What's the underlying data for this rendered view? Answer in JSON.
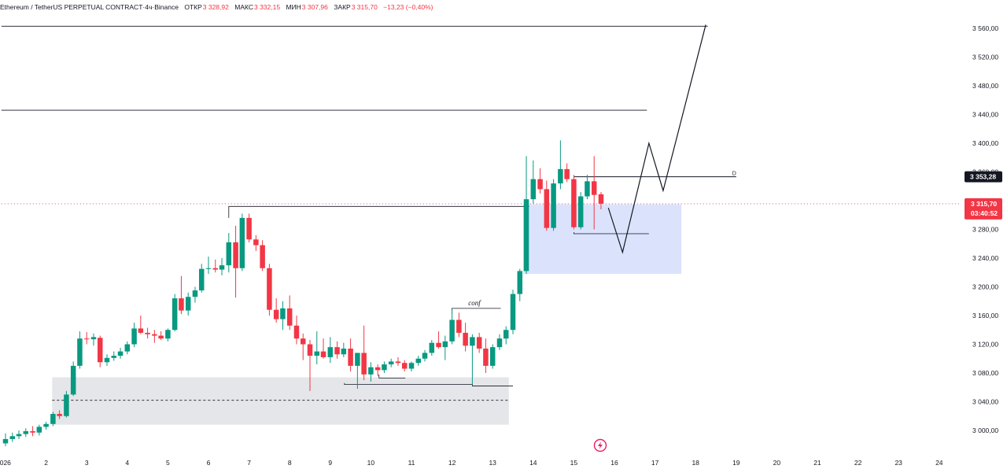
{
  "header": {
    "symbol": "Ethereum / TetherUS PERPETUAL CONTRACT",
    "interval": "4ч",
    "exchange": "Binance",
    "open_label": "ОТКР",
    "open_value": "3 328,92",
    "high_label": "МАКС",
    "high_value": "3 332,15",
    "low_label": "МИН",
    "low_value": "3 307,96",
    "close_label": "ЗАКР",
    "close_value": "3 315,70",
    "change": "−13,23 (−0,40%)"
  },
  "colors": {
    "up": "#089981",
    "down": "#f23645",
    "grey_zone": "#e5e6e9",
    "blue_zone": "#dbe3fc",
    "text": "#131722"
  },
  "price_axis": {
    "ticks": [
      "3 560,00",
      "3 520,00",
      "3 480,00",
      "3 440,00",
      "3 400,00",
      "3 360,00",
      "3 320,00",
      "3 280,00",
      "3 240,00",
      "3 200,00",
      "3 160,00",
      "3 120,00",
      "3 080,00",
      "3 040,00",
      "3 000,00"
    ],
    "current_price_label": "3 315,70",
    "countdown_label": "03:40:52",
    "level_label": "3 353,28"
  },
  "time_axis": {
    "ticks": [
      "2026",
      "2",
      "3",
      "4",
      "5",
      "6",
      "7",
      "8",
      "9",
      "10",
      "11",
      "12",
      "13",
      "14",
      "15",
      "16",
      "17",
      "18",
      "19",
      "20",
      "21",
      "22",
      "23",
      "24"
    ]
  },
  "annotations": {
    "conf": "conf",
    "d_marker": "D",
    "flash_icon": "lightning-icon"
  },
  "chart_data": {
    "type": "candlestick",
    "timeframe": "4ч",
    "x_unit": "day of month (4h candles)",
    "ylim": [
      2980,
      3570
    ],
    "xlim": [
      0.9,
      25.1
    ],
    "candles": [
      {
        "t": 1.0,
        "o": 2982,
        "h": 2996,
        "l": 2978,
        "c": 2988
      },
      {
        "t": 1.17,
        "o": 2988,
        "h": 2997,
        "l": 2984,
        "c": 2992
      },
      {
        "t": 1.33,
        "o": 2992,
        "h": 3000,
        "l": 2988,
        "c": 2995
      },
      {
        "t": 1.5,
        "o": 2995,
        "h": 3003,
        "l": 2991,
        "c": 2999
      },
      {
        "t": 1.67,
        "o": 2999,
        "h": 3006,
        "l": 2992,
        "c": 2997
      },
      {
        "t": 1.83,
        "o": 2997,
        "h": 3008,
        "l": 2993,
        "c": 3005
      },
      {
        "t": 2.0,
        "o": 3005,
        "h": 3012,
        "l": 3001,
        "c": 3009
      },
      {
        "t": 2.17,
        "o": 3009,
        "h": 3026,
        "l": 3006,
        "c": 3023
      },
      {
        "t": 2.33,
        "o": 3023,
        "h": 3028,
        "l": 3016,
        "c": 3020
      },
      {
        "t": 2.5,
        "o": 3020,
        "h": 3055,
        "l": 3018,
        "c": 3050
      },
      {
        "t": 2.67,
        "o": 3050,
        "h": 3096,
        "l": 3048,
        "c": 3090
      },
      {
        "t": 2.83,
        "o": 3090,
        "h": 3138,
        "l": 3086,
        "c": 3128
      },
      {
        "t": 3.0,
        "o": 3128,
        "h": 3137,
        "l": 3120,
        "c": 3127
      },
      {
        "t": 3.17,
        "o": 3127,
        "h": 3135,
        "l": 3118,
        "c": 3130
      },
      {
        "t": 3.33,
        "o": 3129,
        "h": 3132,
        "l": 3088,
        "c": 3095
      },
      {
        "t": 3.5,
        "o": 3095,
        "h": 3106,
        "l": 3090,
        "c": 3101
      },
      {
        "t": 3.67,
        "o": 3101,
        "h": 3110,
        "l": 3097,
        "c": 3104
      },
      {
        "t": 3.83,
        "o": 3104,
        "h": 3115,
        "l": 3100,
        "c": 3110
      },
      {
        "t": 4.0,
        "o": 3110,
        "h": 3124,
        "l": 3106,
        "c": 3120
      },
      {
        "t": 4.17,
        "o": 3120,
        "h": 3150,
        "l": 3116,
        "c": 3142
      },
      {
        "t": 4.33,
        "o": 3142,
        "h": 3160,
        "l": 3134,
        "c": 3136
      },
      {
        "t": 4.5,
        "o": 3136,
        "h": 3143,
        "l": 3128,
        "c": 3134
      },
      {
        "t": 4.67,
        "o": 3134,
        "h": 3140,
        "l": 3122,
        "c": 3132
      },
      {
        "t": 4.83,
        "o": 3132,
        "h": 3138,
        "l": 3126,
        "c": 3128
      },
      {
        "t": 5.0,
        "o": 3128,
        "h": 3142,
        "l": 3124,
        "c": 3140
      },
      {
        "t": 5.17,
        "o": 3140,
        "h": 3190,
        "l": 3138,
        "c": 3184
      },
      {
        "t": 5.33,
        "o": 3184,
        "h": 3215,
        "l": 3162,
        "c": 3167
      },
      {
        "t": 5.5,
        "o": 3167,
        "h": 3192,
        "l": 3160,
        "c": 3186
      },
      {
        "t": 5.67,
        "o": 3186,
        "h": 3200,
        "l": 3178,
        "c": 3195
      },
      {
        "t": 5.83,
        "o": 3195,
        "h": 3232,
        "l": 3192,
        "c": 3225
      },
      {
        "t": 6.0,
        "o": 3225,
        "h": 3242,
        "l": 3218,
        "c": 3226
      },
      {
        "t": 6.17,
        "o": 3226,
        "h": 3238,
        "l": 3220,
        "c": 3224
      },
      {
        "t": 6.33,
        "o": 3224,
        "h": 3240,
        "l": 3216,
        "c": 3230
      },
      {
        "t": 6.5,
        "o": 3230,
        "h": 3275,
        "l": 3220,
        "c": 3262
      },
      {
        "t": 6.67,
        "o": 3262,
        "h": 3285,
        "l": 3185,
        "c": 3226
      },
      {
        "t": 6.83,
        "o": 3226,
        "h": 3302,
        "l": 3222,
        "c": 3296
      },
      {
        "t": 7.0,
        "o": 3296,
        "h": 3302,
        "l": 3262,
        "c": 3266
      },
      {
        "t": 7.17,
        "o": 3266,
        "h": 3272,
        "l": 3250,
        "c": 3258
      },
      {
        "t": 7.33,
        "o": 3258,
        "h": 3265,
        "l": 3222,
        "c": 3226
      },
      {
        "t": 7.5,
        "o": 3226,
        "h": 3232,
        "l": 3160,
        "c": 3168
      },
      {
        "t": 7.67,
        "o": 3168,
        "h": 3184,
        "l": 3150,
        "c": 3155
      },
      {
        "t": 7.83,
        "o": 3155,
        "h": 3180,
        "l": 3140,
        "c": 3170
      },
      {
        "t": 8.0,
        "o": 3170,
        "h": 3188,
        "l": 3140,
        "c": 3146
      },
      {
        "t": 8.17,
        "o": 3146,
        "h": 3160,
        "l": 3120,
        "c": 3128
      },
      {
        "t": 8.33,
        "o": 3128,
        "h": 3135,
        "l": 3098,
        "c": 3120
      },
      {
        "t": 8.5,
        "o": 3120,
        "h": 3126,
        "l": 3055,
        "c": 3104
      },
      {
        "t": 8.67,
        "o": 3104,
        "h": 3138,
        "l": 3092,
        "c": 3110
      },
      {
        "t": 8.83,
        "o": 3110,
        "h": 3128,
        "l": 3100,
        "c": 3102
      },
      {
        "t": 9.0,
        "o": 3102,
        "h": 3130,
        "l": 3094,
        "c": 3116
      },
      {
        "t": 9.17,
        "o": 3116,
        "h": 3124,
        "l": 3100,
        "c": 3106
      },
      {
        "t": 9.33,
        "o": 3106,
        "h": 3122,
        "l": 3102,
        "c": 3114
      },
      {
        "t": 9.5,
        "o": 3114,
        "h": 3128,
        "l": 3082,
        "c": 3090
      },
      {
        "t": 9.67,
        "o": 3090,
        "h": 3108,
        "l": 3058,
        "c": 3108
      },
      {
        "t": 9.83,
        "o": 3108,
        "h": 3146,
        "l": 3070,
        "c": 3078
      },
      {
        "t": 10.0,
        "o": 3078,
        "h": 3095,
        "l": 3068,
        "c": 3088
      },
      {
        "t": 10.17,
        "o": 3088,
        "h": 3092,
        "l": 3076,
        "c": 3084
      },
      {
        "t": 10.33,
        "o": 3084,
        "h": 3096,
        "l": 3080,
        "c": 3092
      },
      {
        "t": 10.5,
        "o": 3092,
        "h": 3100,
        "l": 3088,
        "c": 3096
      },
      {
        "t": 10.67,
        "o": 3096,
        "h": 3102,
        "l": 3090,
        "c": 3094
      },
      {
        "t": 10.83,
        "o": 3094,
        "h": 3098,
        "l": 3082,
        "c": 3086
      },
      {
        "t": 11.0,
        "o": 3086,
        "h": 3096,
        "l": 3082,
        "c": 3094
      },
      {
        "t": 11.17,
        "o": 3094,
        "h": 3104,
        "l": 3090,
        "c": 3100
      },
      {
        "t": 11.33,
        "o": 3100,
        "h": 3112,
        "l": 3096,
        "c": 3108
      },
      {
        "t": 11.5,
        "o": 3108,
        "h": 3126,
        "l": 3104,
        "c": 3122
      },
      {
        "t": 11.67,
        "o": 3122,
        "h": 3138,
        "l": 3114,
        "c": 3116
      },
      {
        "t": 11.83,
        "o": 3116,
        "h": 3132,
        "l": 3098,
        "c": 3124
      },
      {
        "t": 12.0,
        "o": 3124,
        "h": 3168,
        "l": 3120,
        "c": 3154
      },
      {
        "t": 12.17,
        "o": 3154,
        "h": 3164,
        "l": 3130,
        "c": 3136
      },
      {
        "t": 12.33,
        "o": 3136,
        "h": 3150,
        "l": 3110,
        "c": 3118
      },
      {
        "t": 12.5,
        "o": 3118,
        "h": 3134,
        "l": 3064,
        "c": 3130
      },
      {
        "t": 12.67,
        "o": 3130,
        "h": 3136,
        "l": 3108,
        "c": 3114
      },
      {
        "t": 12.83,
        "o": 3114,
        "h": 3128,
        "l": 3080,
        "c": 3090
      },
      {
        "t": 13.0,
        "o": 3090,
        "h": 3120,
        "l": 3086,
        "c": 3116
      },
      {
        "t": 13.17,
        "o": 3116,
        "h": 3134,
        "l": 3112,
        "c": 3128
      },
      {
        "t": 13.33,
        "o": 3128,
        "h": 3145,
        "l": 3120,
        "c": 3140
      },
      {
        "t": 13.5,
        "o": 3140,
        "h": 3196,
        "l": 3134,
        "c": 3190
      },
      {
        "t": 13.67,
        "o": 3190,
        "h": 3225,
        "l": 3180,
        "c": 3222
      },
      {
        "t": 13.83,
        "o": 3222,
        "h": 3382,
        "l": 3218,
        "c": 3322
      },
      {
        "t": 14.0,
        "o": 3322,
        "h": 3376,
        "l": 3316,
        "c": 3350
      },
      {
        "t": 14.17,
        "o": 3350,
        "h": 3365,
        "l": 3330,
        "c": 3336
      },
      {
        "t": 14.33,
        "o": 3336,
        "h": 3348,
        "l": 3278,
        "c": 3282
      },
      {
        "t": 14.5,
        "o": 3282,
        "h": 3350,
        "l": 3278,
        "c": 3344
      },
      {
        "t": 14.67,
        "o": 3344,
        "h": 3404,
        "l": 3336,
        "c": 3364
      },
      {
        "t": 14.83,
        "o": 3364,
        "h": 3372,
        "l": 3346,
        "c": 3350
      },
      {
        "t": 15.0,
        "o": 3350,
        "h": 3356,
        "l": 3280,
        "c": 3283
      },
      {
        "t": 15.17,
        "o": 3283,
        "h": 3332,
        "l": 3280,
        "c": 3326
      },
      {
        "t": 15.33,
        "o": 3326,
        "h": 3356,
        "l": 3322,
        "c": 3347
      },
      {
        "t": 15.5,
        "o": 3347,
        "h": 3382,
        "l": 3280,
        "c": 3328
      },
      {
        "t": 15.67,
        "o": 3328.92,
        "h": 3332.15,
        "l": 3307.96,
        "c": 3315.7
      }
    ],
    "levels": [
      {
        "price": 3563,
        "x_from": 0.9,
        "x_to": 18.3,
        "style": "solid"
      },
      {
        "price": 3446,
        "x_from": 0.9,
        "x_to": 16.8,
        "style": "solid"
      },
      {
        "price": 3353.28,
        "x_from": 15.0,
        "x_to": 19.0,
        "style": "solid",
        "label": "D"
      },
      {
        "price": 3315.7,
        "x_from": 0.9,
        "x_to": 25.1,
        "style": "dotted"
      },
      {
        "price": 3042,
        "x_from": 2.15,
        "x_to": 13.4,
        "style": "dashed"
      }
    ],
    "zones": [
      {
        "name": "grey",
        "x_from": 2.15,
        "x_to": 13.4,
        "y_from": 3008,
        "y_to": 3074
      },
      {
        "name": "blue",
        "x_from": 13.75,
        "x_to": 17.65,
        "y_from": 3218,
        "y_to": 3315
      }
    ],
    "projection": [
      {
        "x": 15.85,
        "y": 3310
      },
      {
        "x": 16.2,
        "y": 3248
      },
      {
        "x": 16.85,
        "y": 3400
      },
      {
        "x": 17.2,
        "y": 3334
      },
      {
        "x": 18.25,
        "y": 3565
      }
    ],
    "structure_lines": [
      {
        "points": [
          [
            6.5,
            3296
          ],
          [
            6.5,
            3312
          ],
          [
            13.9,
            3312
          ]
        ]
      },
      {
        "points": [
          [
            9.35,
            3066
          ],
          [
            9.35,
            3064
          ],
          [
            12.5,
            3064
          ],
          [
            12.5,
            3062
          ],
          [
            13.5,
            3062
          ]
        ]
      },
      {
        "points": [
          [
            10.2,
            3078
          ],
          [
            10.2,
            3073
          ],
          [
            10.85,
            3073
          ]
        ]
      },
      {
        "points": [
          [
            12.0,
            3162
          ],
          [
            12.0,
            3170
          ],
          [
            13.2,
            3170
          ]
        ]
      },
      {
        "points": [
          [
            15.0,
            3276
          ],
          [
            15.0,
            3274
          ],
          [
            16.85,
            3274
          ]
        ]
      }
    ]
  }
}
